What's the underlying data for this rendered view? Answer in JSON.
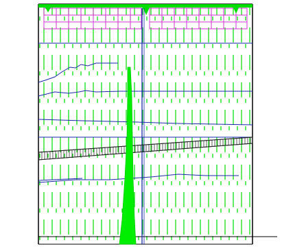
{
  "colors": {
    "background": "#ffffff",
    "frame": "#000000",
    "hatch_green": "#00dd00",
    "magenta": "#cc33cc",
    "blue": "#1a2aa8",
    "beam": "#222222"
  }
}
